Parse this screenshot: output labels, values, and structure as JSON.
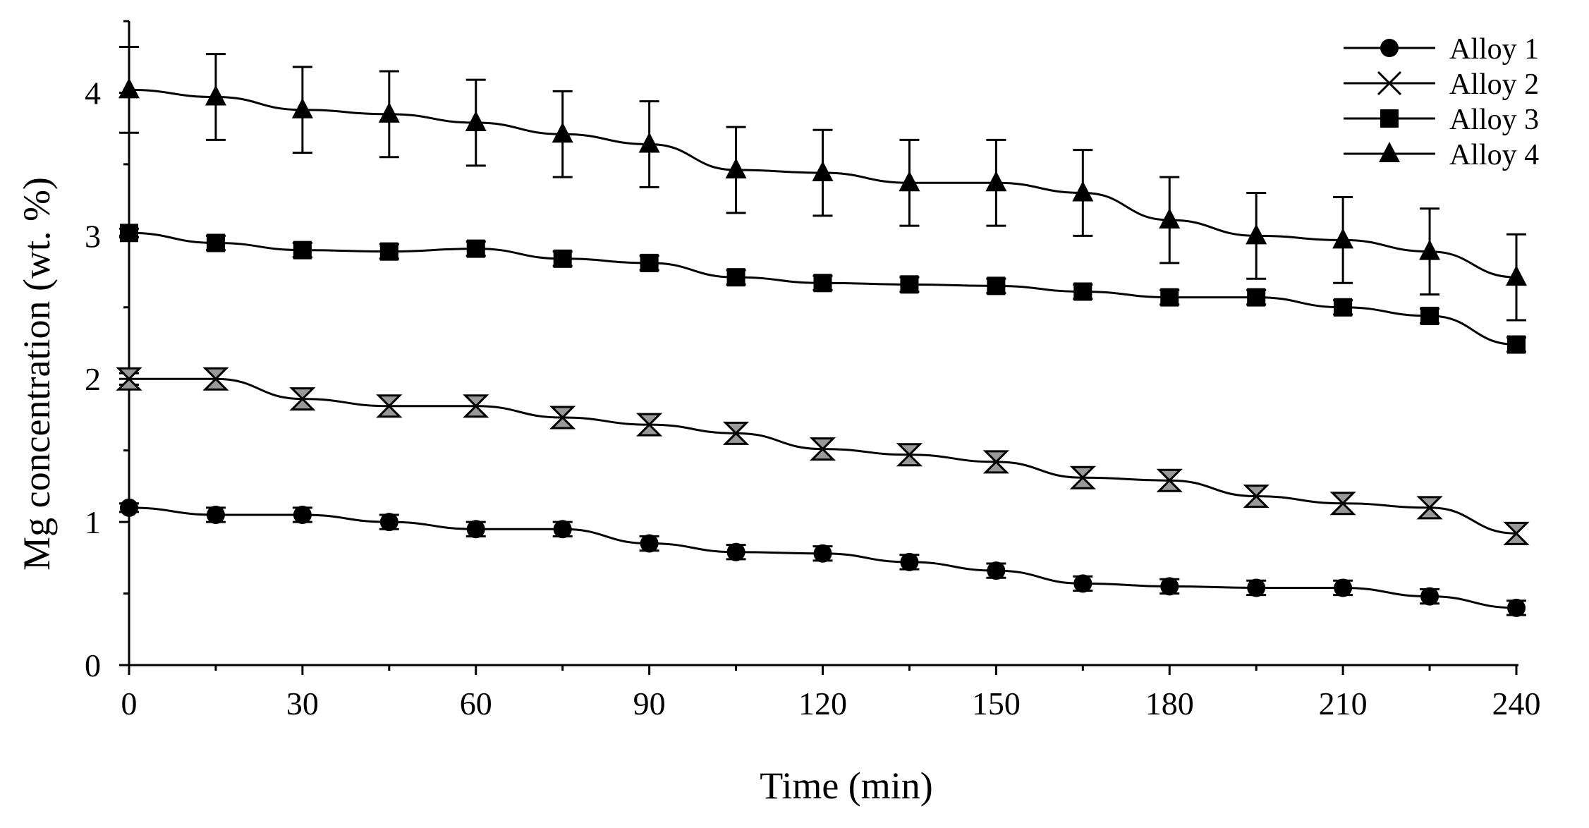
{
  "chart_data": {
    "type": "line",
    "title": "",
    "xlabel": "Time (min)",
    "ylabel": "Mg concentration (wt. %)",
    "xlim": [
      0,
      240
    ],
    "ylim": [
      0,
      4.5
    ],
    "xticks": [
      0,
      30,
      60,
      90,
      120,
      150,
      180,
      210,
      240
    ],
    "yticks": [
      0,
      1,
      2,
      3,
      4
    ],
    "grid": false,
    "legend_position": "top-right",
    "x": [
      0,
      15,
      30,
      45,
      60,
      75,
      90,
      105,
      120,
      135,
      150,
      165,
      180,
      195,
      210,
      225,
      240
    ],
    "series": [
      {
        "name": "Alloy 1",
        "marker": "circle",
        "values": [
          1.1,
          1.05,
          1.05,
          1.0,
          0.95,
          0.95,
          0.85,
          0.79,
          0.78,
          0.72,
          0.66,
          0.57,
          0.55,
          0.54,
          0.54,
          0.48,
          0.4
        ],
        "errors": [
          0.03,
          0.05,
          0.05,
          0.05,
          0.05,
          0.05,
          0.05,
          0.05,
          0.05,
          0.05,
          0.05,
          0.05,
          0.05,
          0.05,
          0.05,
          0.05,
          0.05
        ]
      },
      {
        "name": "Alloy 2",
        "marker": "x",
        "values": [
          2.0,
          2.0,
          1.86,
          1.81,
          1.81,
          1.73,
          1.68,
          1.62,
          1.51,
          1.47,
          1.42,
          1.31,
          1.29,
          1.18,
          1.13,
          1.1,
          0.92
        ],
        "errors": [
          0.04,
          0.07,
          0.07,
          0.07,
          0.07,
          0.07,
          0.07,
          0.07,
          0.07,
          0.07,
          0.07,
          0.07,
          0.07,
          0.07,
          0.07,
          0.07,
          0.07
        ]
      },
      {
        "name": "Alloy 3",
        "marker": "square",
        "values": [
          3.02,
          2.95,
          2.9,
          2.89,
          2.91,
          2.84,
          2.81,
          2.71,
          2.67,
          2.66,
          2.65,
          2.61,
          2.57,
          2.57,
          2.5,
          2.44,
          2.24
        ],
        "errors": [
          0.03,
          0.05,
          0.05,
          0.05,
          0.05,
          0.05,
          0.05,
          0.05,
          0.05,
          0.05,
          0.05,
          0.05,
          0.05,
          0.05,
          0.05,
          0.05,
          0.05
        ]
      },
      {
        "name": "Alloy 4",
        "marker": "triangle",
        "values": [
          4.02,
          3.97,
          3.88,
          3.85,
          3.79,
          3.71,
          3.64,
          3.46,
          3.44,
          3.37,
          3.37,
          3.3,
          3.11,
          3.0,
          2.97,
          2.89,
          2.71
        ],
        "errors": [
          0.3,
          0.3,
          0.3,
          0.3,
          0.3,
          0.3,
          0.3,
          0.3,
          0.3,
          0.3,
          0.3,
          0.3,
          0.3,
          0.3,
          0.3,
          0.3,
          0.3
        ]
      }
    ]
  },
  "colors": {
    "ink": "#000000",
    "x_marker_fill": "#999999",
    "background": "#ffffff"
  }
}
